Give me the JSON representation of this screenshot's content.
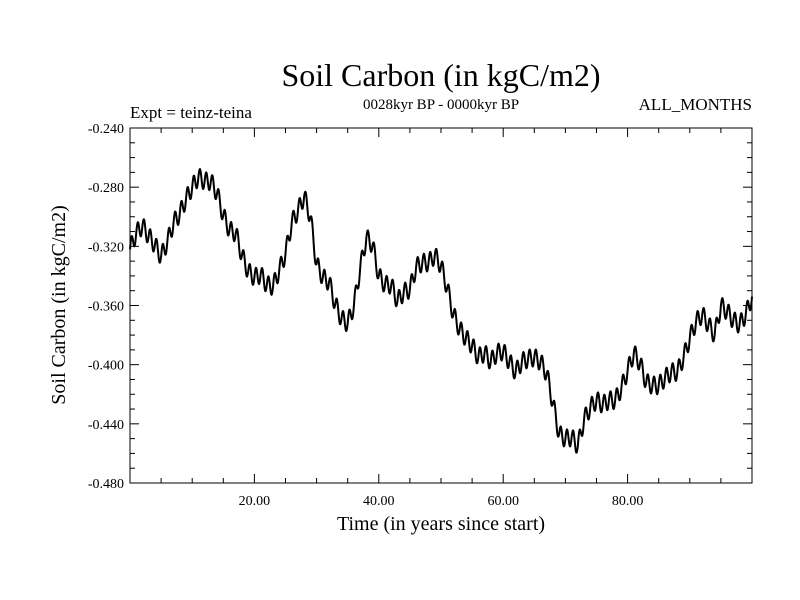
{
  "chart_data": {
    "type": "line",
    "title": "Soil Carbon (in kgC/m2)",
    "subtitle": "0028kyr BP - 0000kyr BP",
    "left_header": "Expt = teinz-teina",
    "right_header": "ALL_MONTHS",
    "xlabel": "Time (in years since start)",
    "ylabel": "Soil Carbon (in kgC/m2)",
    "xlim": [
      0,
      100
    ],
    "ylim": [
      -0.48,
      -0.24
    ],
    "xticks": [
      20,
      40,
      60,
      80
    ],
    "xtick_labels": [
      "20.00",
      "40.00",
      "60.00",
      "80.00"
    ],
    "yticks": [
      -0.24,
      -0.28,
      -0.32,
      -0.36,
      -0.4,
      -0.44,
      -0.48
    ],
    "ytick_labels": [
      "-0.240",
      "-0.280",
      "-0.320",
      "-0.360",
      "-0.400",
      "-0.440",
      "-0.480"
    ],
    "grid": false,
    "series": [
      {
        "name": "Soil Carbon",
        "color": "#000000",
        "seasonal_amplitude": 0.006,
        "x": [
          0,
          1,
          2,
          3,
          4,
          5,
          6,
          7,
          8,
          9,
          10,
          11,
          12,
          13,
          14,
          15,
          16,
          17,
          18,
          19,
          20,
          21,
          22,
          23,
          24,
          25,
          26,
          27,
          28,
          29,
          30,
          31,
          32,
          33,
          34,
          35,
          36,
          37,
          38,
          39,
          40,
          41,
          42,
          43,
          44,
          45,
          46,
          47,
          48,
          49,
          50,
          51,
          52,
          53,
          54,
          55,
          56,
          57,
          58,
          59,
          60,
          61,
          62,
          63,
          64,
          65,
          66,
          67,
          68,
          69,
          70,
          71,
          72,
          73,
          74,
          75,
          76,
          77,
          78,
          79,
          80,
          81,
          82,
          83,
          84,
          85,
          86,
          87,
          88,
          89,
          90,
          91,
          92,
          93,
          94,
          95,
          96,
          97,
          98,
          99,
          100
        ],
        "values": [
          -0.322,
          -0.311,
          -0.306,
          -0.313,
          -0.319,
          -0.327,
          -0.317,
          -0.304,
          -0.298,
          -0.288,
          -0.28,
          -0.273,
          -0.276,
          -0.276,
          -0.284,
          -0.299,
          -0.309,
          -0.311,
          -0.326,
          -0.337,
          -0.341,
          -0.339,
          -0.346,
          -0.347,
          -0.336,
          -0.325,
          -0.304,
          -0.296,
          -0.286,
          -0.3,
          -0.332,
          -0.341,
          -0.344,
          -0.359,
          -0.369,
          -0.372,
          -0.36,
          -0.335,
          -0.314,
          -0.319,
          -0.34,
          -0.346,
          -0.346,
          -0.357,
          -0.351,
          -0.349,
          -0.334,
          -0.331,
          -0.331,
          -0.326,
          -0.333,
          -0.348,
          -0.366,
          -0.376,
          -0.382,
          -0.387,
          -0.395,
          -0.392,
          -0.398,
          -0.392,
          -0.391,
          -0.398,
          -0.405,
          -0.398,
          -0.396,
          -0.395,
          -0.398,
          -0.406,
          -0.426,
          -0.447,
          -0.45,
          -0.449,
          -0.455,
          -0.437,
          -0.429,
          -0.424,
          -0.427,
          -0.424,
          -0.424,
          -0.416,
          -0.404,
          -0.392,
          -0.399,
          -0.412,
          -0.414,
          -0.414,
          -0.409,
          -0.405,
          -0.405,
          -0.395,
          -0.382,
          -0.371,
          -0.366,
          -0.373,
          -0.38,
          -0.36,
          -0.364,
          -0.37,
          -0.373,
          -0.366,
          -0.354
        ]
      }
    ]
  }
}
